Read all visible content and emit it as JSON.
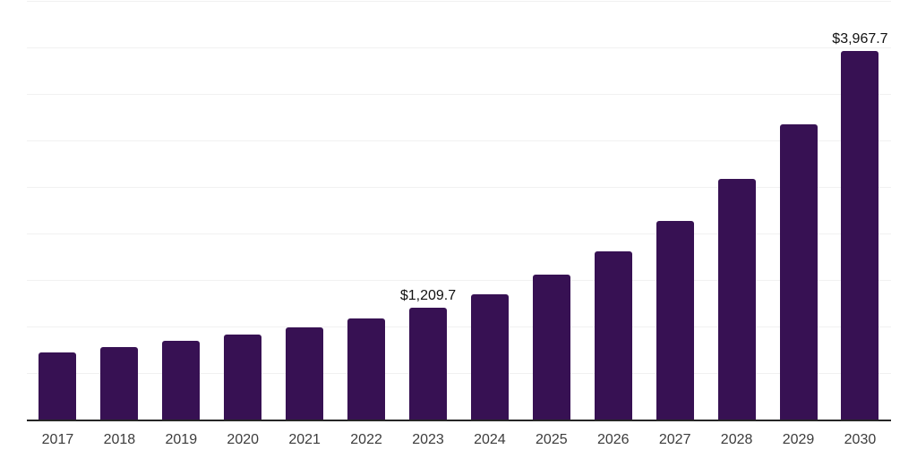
{
  "chart_data": {
    "type": "bar",
    "title": "",
    "xlabel": "",
    "ylabel": "",
    "categories": [
      "2017",
      "2018",
      "2019",
      "2020",
      "2021",
      "2022",
      "2023",
      "2024",
      "2025",
      "2026",
      "2027",
      "2028",
      "2029",
      "2030"
    ],
    "values": [
      730,
      787,
      855,
      922,
      998,
      1094,
      1209.7,
      1353,
      1565,
      1820,
      2140,
      2595,
      3180,
      3967.7
    ],
    "data_labels": {
      "2023": "$1,209.7",
      "2030": "$3,967.7"
    },
    "ylim": [
      0,
      4500
    ],
    "grid": {
      "horizontal": true,
      "interval": 500
    },
    "legend": "none",
    "y_tick_labels_visible": false,
    "colors": {
      "bar": "#371153",
      "gridline": "#f1f1f1",
      "axis_line": "#262626",
      "x_tick_text": "#3c3c3c",
      "data_label_text": "#111111",
      "background": "#ffffff"
    }
  }
}
